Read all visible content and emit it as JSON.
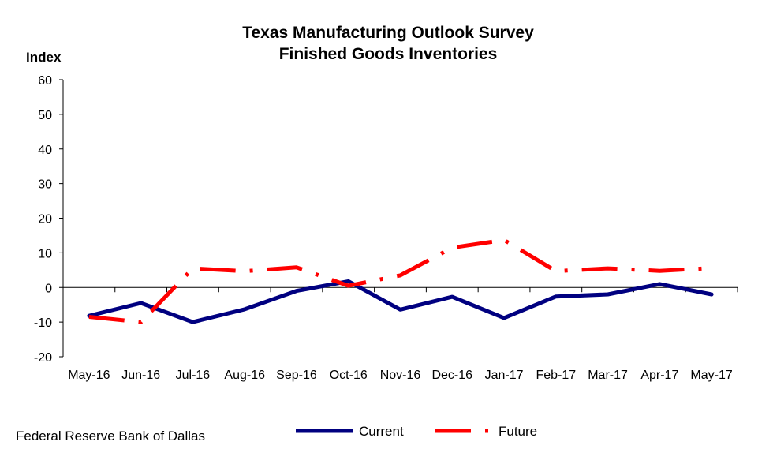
{
  "chart_data": {
    "type": "line",
    "title_lines": [
      "Texas Manufacturing Outlook Survey",
      "Finished Goods Inventories"
    ],
    "ylabel": "Index",
    "xlabel": "",
    "ylim": [
      -20,
      60
    ],
    "yticks": [
      "60",
      "50",
      "40",
      "30",
      "20",
      "10",
      "0",
      "-10",
      "-20"
    ],
    "categories": [
      "May-16",
      "Jun-16",
      "Jul-16",
      "Aug-16",
      "Sep-16",
      "Oct-16",
      "Nov-16",
      "Dec-16",
      "Jan-17",
      "Feb-17",
      "Mar-17",
      "Apr-17",
      "May-17"
    ],
    "series": [
      {
        "name": "Current",
        "color": "#000080",
        "style": "solid",
        "values": [
          -8.2,
          -4.5,
          -10.0,
          -6.3,
          -1.0,
          1.8,
          -6.4,
          -2.7,
          -8.8,
          -2.6,
          -2.0,
          1.0,
          -2.0
        ]
      },
      {
        "name": "Future",
        "color": "#ff0000",
        "style": "dash-dot",
        "values": [
          -8.5,
          -10.0,
          5.5,
          4.7,
          5.8,
          0.5,
          3.5,
          11.5,
          13.7,
          4.7,
          5.5,
          4.8,
          5.6
        ]
      }
    ],
    "grid": false,
    "legend": "bottom-center"
  },
  "source": "Federal Reserve Bank of Dallas"
}
